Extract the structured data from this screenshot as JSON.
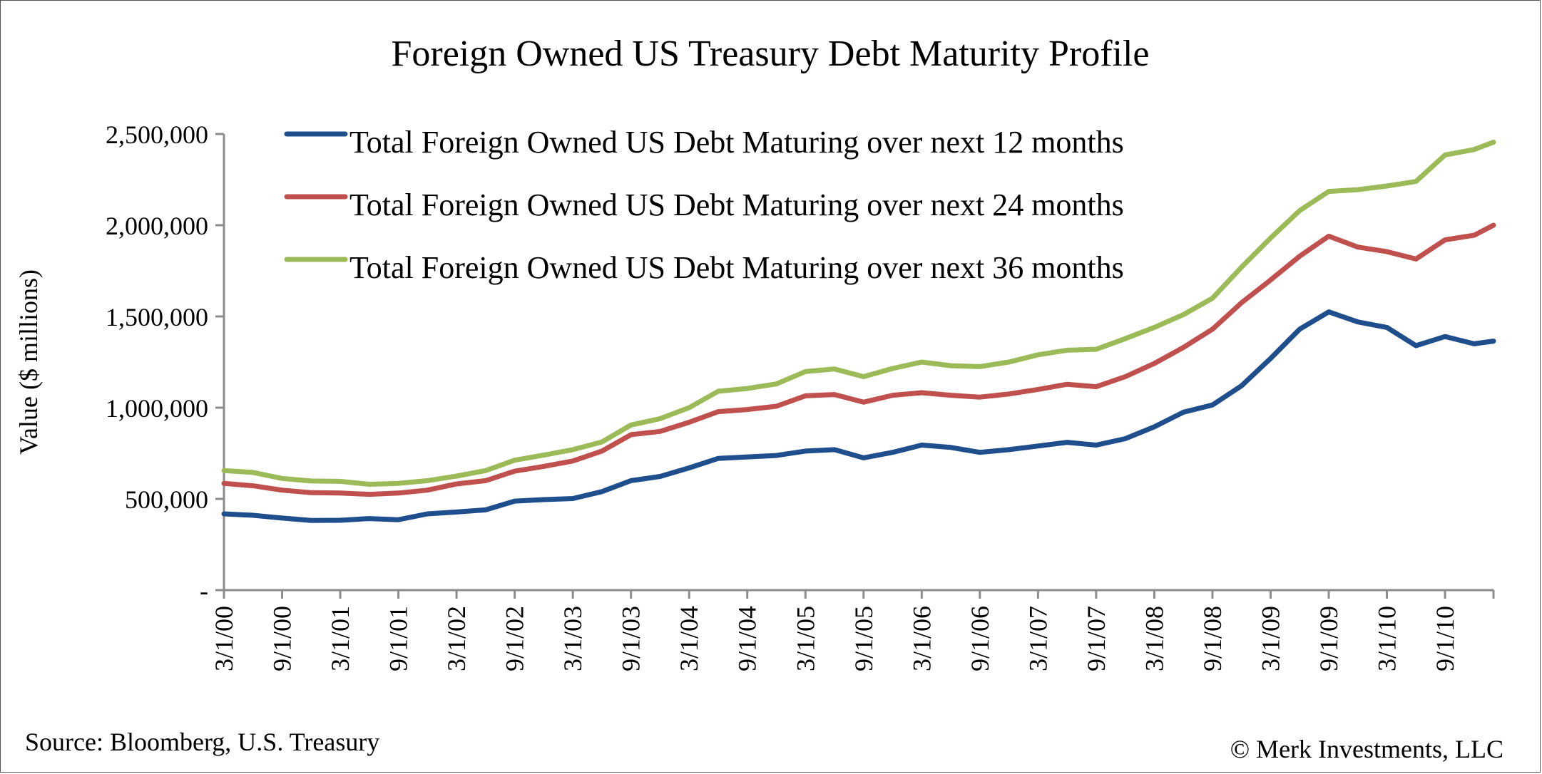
{
  "chart_data": {
    "type": "line",
    "title": "Foreign Owned US Treasury Debt Maturity Profile",
    "ylabel": "Value ($ millions)",
    "xlabel": "",
    "ylim": [
      0,
      2500000
    ],
    "yticks": [
      {
        "value": 0,
        "label": "-"
      },
      {
        "value": 500000,
        "label": "500,000"
      },
      {
        "value": 1000000,
        "label": "1,000,000"
      },
      {
        "value": 1500000,
        "label": "1,500,000"
      },
      {
        "value": 2000000,
        "label": "2,000,000"
      },
      {
        "value": 2500000,
        "label": "2,500,000"
      }
    ],
    "x_start": "3/1/00",
    "x_end": "2/1/11",
    "xticks": [
      "3/1/00",
      "9/1/00",
      "3/1/01",
      "9/1/01",
      "3/1/02",
      "9/1/02",
      "3/1/03",
      "9/1/03",
      "3/1/04",
      "9/1/04",
      "3/1/05",
      "9/1/05",
      "3/1/06",
      "9/1/06",
      "3/1/07",
      "9/1/07",
      "3/1/08",
      "9/1/08",
      "3/1/09",
      "9/1/09",
      "3/1/10",
      "9/1/10"
    ],
    "legend_position": "top-left",
    "grid": false,
    "series": [
      {
        "name": "Total Foreign Owned US Debt Maturing over next 12 months",
        "color": "#1f4e8c",
        "points": [
          [
            "3/1/00",
            418000
          ],
          [
            "6/1/00",
            410000
          ],
          [
            "9/1/00",
            395000
          ],
          [
            "12/1/00",
            382000
          ],
          [
            "3/1/01",
            383000
          ],
          [
            "6/1/01",
            392000
          ],
          [
            "9/1/01",
            386000
          ],
          [
            "12/1/01",
            418000
          ],
          [
            "3/1/02",
            428000
          ],
          [
            "6/1/02",
            440000
          ],
          [
            "9/1/02",
            488000
          ],
          [
            "12/1/02",
            496000
          ],
          [
            "3/1/03",
            502000
          ],
          [
            "6/1/03",
            540000
          ],
          [
            "9/1/03",
            600000
          ],
          [
            "12/1/03",
            623000
          ],
          [
            "3/1/04",
            670000
          ],
          [
            "6/1/04",
            722000
          ],
          [
            "9/1/04",
            730000
          ],
          [
            "12/1/04",
            738000
          ],
          [
            "3/1/05",
            762000
          ],
          [
            "6/1/05",
            770000
          ],
          [
            "9/1/05",
            725000
          ],
          [
            "12/1/05",
            755000
          ],
          [
            "3/1/06",
            795000
          ],
          [
            "6/1/06",
            782000
          ],
          [
            "9/1/06",
            755000
          ],
          [
            "12/1/06",
            770000
          ],
          [
            "3/1/07",
            790000
          ],
          [
            "6/1/07",
            810000
          ],
          [
            "9/1/07",
            795000
          ],
          [
            "12/1/07",
            830000
          ],
          [
            "3/1/08",
            895000
          ],
          [
            "6/1/08",
            975000
          ],
          [
            "9/1/08",
            1015000
          ],
          [
            "12/1/08",
            1120000
          ],
          [
            "3/1/09",
            1270000
          ],
          [
            "6/1/09",
            1430000
          ],
          [
            "9/1/09",
            1525000
          ],
          [
            "12/1/09",
            1470000
          ],
          [
            "3/1/10",
            1440000
          ],
          [
            "6/1/10",
            1340000
          ],
          [
            "9/1/10",
            1390000
          ],
          [
            "12/1/10",
            1350000
          ],
          [
            "2/1/11",
            1365000
          ]
        ]
      },
      {
        "name": "Total Foreign Owned US Debt Maturing over next 24 months",
        "color": "#c0504d",
        "points": [
          [
            "3/1/00",
            585000
          ],
          [
            "6/1/00",
            572000
          ],
          [
            "9/1/00",
            548000
          ],
          [
            "12/1/00",
            534000
          ],
          [
            "3/1/01",
            532000
          ],
          [
            "6/1/01",
            525000
          ],
          [
            "9/1/01",
            532000
          ],
          [
            "12/1/01",
            548000
          ],
          [
            "3/1/02",
            582000
          ],
          [
            "6/1/02",
            600000
          ],
          [
            "9/1/02",
            652000
          ],
          [
            "12/1/02",
            678000
          ],
          [
            "3/1/03",
            708000
          ],
          [
            "6/1/03",
            762000
          ],
          [
            "9/1/03",
            852000
          ],
          [
            "12/1/03",
            870000
          ],
          [
            "3/1/04",
            920000
          ],
          [
            "6/1/04",
            978000
          ],
          [
            "9/1/04",
            990000
          ],
          [
            "12/1/04",
            1008000
          ],
          [
            "3/1/05",
            1065000
          ],
          [
            "6/1/05",
            1072000
          ],
          [
            "9/1/05",
            1030000
          ],
          [
            "12/1/05",
            1068000
          ],
          [
            "3/1/06",
            1082000
          ],
          [
            "6/1/06",
            1068000
          ],
          [
            "9/1/06",
            1058000
          ],
          [
            "12/1/06",
            1075000
          ],
          [
            "3/1/07",
            1100000
          ],
          [
            "6/1/07",
            1128000
          ],
          [
            "9/1/07",
            1115000
          ],
          [
            "12/1/07",
            1170000
          ],
          [
            "3/1/08",
            1242000
          ],
          [
            "6/1/08",
            1330000
          ],
          [
            "9/1/08",
            1430000
          ],
          [
            "12/1/08",
            1575000
          ],
          [
            "3/1/09",
            1700000
          ],
          [
            "6/1/09",
            1830000
          ],
          [
            "9/1/09",
            1940000
          ],
          [
            "12/1/09",
            1880000
          ],
          [
            "3/1/10",
            1855000
          ],
          [
            "6/1/10",
            1815000
          ],
          [
            "9/1/10",
            1920000
          ],
          [
            "12/1/10",
            1945000
          ],
          [
            "2/1/11",
            2000000
          ]
        ]
      },
      {
        "name": "Total Foreign Owned US Debt Maturing over next 36 months",
        "color": "#9bbb59",
        "points": [
          [
            "3/1/00",
            655000
          ],
          [
            "6/1/00",
            645000
          ],
          [
            "9/1/00",
            612000
          ],
          [
            "12/1/00",
            598000
          ],
          [
            "3/1/01",
            596000
          ],
          [
            "6/1/01",
            580000
          ],
          [
            "9/1/01",
            585000
          ],
          [
            "12/1/01",
            600000
          ],
          [
            "3/1/02",
            625000
          ],
          [
            "6/1/02",
            655000
          ],
          [
            "9/1/02",
            712000
          ],
          [
            "12/1/02",
            740000
          ],
          [
            "3/1/03",
            770000
          ],
          [
            "6/1/03",
            812000
          ],
          [
            "9/1/03",
            905000
          ],
          [
            "12/1/03",
            940000
          ],
          [
            "3/1/04",
            1000000
          ],
          [
            "6/1/04",
            1090000
          ],
          [
            "9/1/04",
            1105000
          ],
          [
            "12/1/04",
            1130000
          ],
          [
            "3/1/05",
            1198000
          ],
          [
            "6/1/05",
            1212000
          ],
          [
            "9/1/05",
            1170000
          ],
          [
            "12/1/05",
            1215000
          ],
          [
            "3/1/06",
            1250000
          ],
          [
            "6/1/06",
            1230000
          ],
          [
            "9/1/06",
            1225000
          ],
          [
            "12/1/06",
            1250000
          ],
          [
            "3/1/07",
            1290000
          ],
          [
            "6/1/07",
            1315000
          ],
          [
            "9/1/07",
            1320000
          ],
          [
            "12/1/07",
            1378000
          ],
          [
            "3/1/08",
            1440000
          ],
          [
            "6/1/08",
            1510000
          ],
          [
            "9/1/08",
            1600000
          ],
          [
            "12/1/08",
            1770000
          ],
          [
            "3/1/09",
            1930000
          ],
          [
            "6/1/09",
            2080000
          ],
          [
            "9/1/09",
            2185000
          ],
          [
            "12/1/09",
            2195000
          ],
          [
            "3/1/10",
            2215000
          ],
          [
            "6/1/10",
            2240000
          ],
          [
            "9/1/10",
            2385000
          ],
          [
            "12/1/10",
            2415000
          ],
          [
            "2/1/11",
            2455000
          ]
        ]
      }
    ]
  },
  "footer": {
    "source": "Source: Bloomberg, U.S. Treasury",
    "copyright": "© Merk Investments, LLC"
  }
}
